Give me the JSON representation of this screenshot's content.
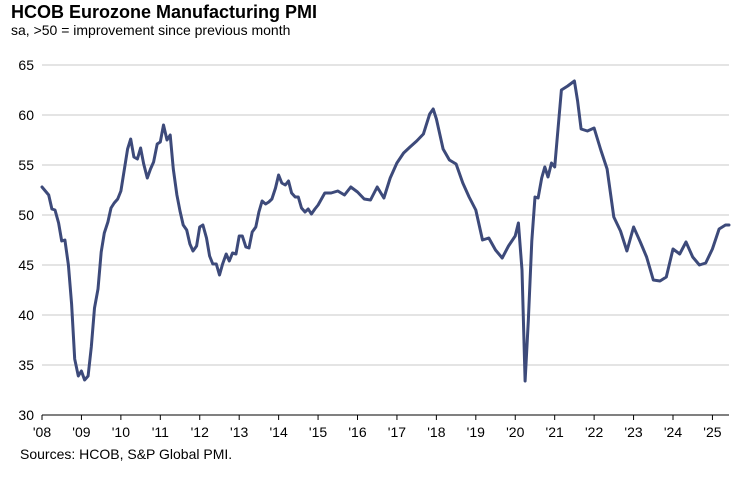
{
  "header": {
    "title": "HCOB Eurozone Manufacturing PMI",
    "subtitle": "sa, >50 = improvement  since previous month"
  },
  "footer": {
    "source": "Sources: HCOB, S&P Global PMI."
  },
  "colors": {
    "line": "#3d4a7a",
    "grid": "#c8c8c8",
    "axis": "#000000"
  },
  "chart_data": {
    "type": "line",
    "title": "HCOB Eurozone Manufacturing PMI",
    "subtitle": "sa, >50 = improvement  since previous month",
    "xlabel": "",
    "ylabel": "",
    "ylim": [
      30,
      65
    ],
    "yticks": [
      30,
      35,
      40,
      45,
      50,
      55,
      60,
      65
    ],
    "xlim": [
      2008.0,
      2025.42
    ],
    "xticks": [
      {
        "value": 2008,
        "label": "'08"
      },
      {
        "value": 2009,
        "label": "'09"
      },
      {
        "value": 2010,
        "label": "'10"
      },
      {
        "value": 2011,
        "label": "'11"
      },
      {
        "value": 2012,
        "label": "'12"
      },
      {
        "value": 2013,
        "label": "'13"
      },
      {
        "value": 2014,
        "label": "'14"
      },
      {
        "value": 2015,
        "label": "'15"
      },
      {
        "value": 2016,
        "label": "'16"
      },
      {
        "value": 2017,
        "label": "'17"
      },
      {
        "value": 2018,
        "label": "'18"
      },
      {
        "value": 2019,
        "label": "'19"
      },
      {
        "value": 2020,
        "label": "'20"
      },
      {
        "value": 2021,
        "label": "'21"
      },
      {
        "value": 2022,
        "label": "'22"
      },
      {
        "value": 2023,
        "label": "'23"
      },
      {
        "value": 2024,
        "label": "'24"
      },
      {
        "value": 2025,
        "label": "'25"
      }
    ],
    "grid": true,
    "series": [
      {
        "name": "HCOB Eurozone Manufacturing PMI",
        "x": [
          2008.0,
          2008.17,
          2008.25,
          2008.33,
          2008.42,
          2008.5,
          2008.58,
          2008.67,
          2008.75,
          2008.83,
          2008.92,
          2009.0,
          2009.08,
          2009.17,
          2009.25,
          2009.33,
          2009.42,
          2009.5,
          2009.58,
          2009.67,
          2009.75,
          2009.83,
          2009.92,
          2010.0,
          2010.17,
          2010.25,
          2010.33,
          2010.42,
          2010.5,
          2010.58,
          2010.67,
          2010.75,
          2010.83,
          2010.92,
          2011.0,
          2011.08,
          2011.17,
          2011.25,
          2011.33,
          2011.42,
          2011.5,
          2011.58,
          2011.67,
          2011.75,
          2011.83,
          2011.92,
          2012.0,
          2012.08,
          2012.17,
          2012.25,
          2012.33,
          2012.42,
          2012.5,
          2012.58,
          2012.67,
          2012.75,
          2012.83,
          2012.92,
          2013.0,
          2013.08,
          2013.17,
          2013.25,
          2013.33,
          2013.42,
          2013.5,
          2013.58,
          2013.67,
          2013.75,
          2013.83,
          2013.92,
          2014.0,
          2014.08,
          2014.17,
          2014.25,
          2014.33,
          2014.42,
          2014.5,
          2014.58,
          2014.67,
          2014.75,
          2014.83,
          2014.92,
          2015.0,
          2015.17,
          2015.33,
          2015.5,
          2015.67,
          2015.83,
          2016.0,
          2016.17,
          2016.33,
          2016.5,
          2016.67,
          2016.83,
          2017.0,
          2017.17,
          2017.33,
          2017.5,
          2017.67,
          2017.83,
          2017.92,
          2018.0,
          2018.17,
          2018.33,
          2018.5,
          2018.67,
          2018.83,
          2019.0,
          2019.17,
          2019.33,
          2019.5,
          2019.67,
          2019.83,
          2020.0,
          2020.08,
          2020.17,
          2020.25,
          2020.33,
          2020.42,
          2020.5,
          2020.58,
          2020.67,
          2020.75,
          2020.83,
          2020.92,
          2021.0,
          2021.17,
          2021.33,
          2021.5,
          2021.58,
          2021.67,
          2021.83,
          2022.0,
          2022.17,
          2022.33,
          2022.5,
          2022.67,
          2022.83,
          2023.0,
          2023.17,
          2023.33,
          2023.5,
          2023.67,
          2023.83,
          2024.0,
          2024.17,
          2024.33,
          2024.5,
          2024.67,
          2024.83,
          2025.0,
          2025.17,
          2025.33,
          2025.42
        ],
        "values": [
          52.8,
          52.0,
          50.6,
          50.5,
          49.2,
          47.4,
          47.5,
          45.0,
          41.1,
          35.6,
          33.9,
          34.4,
          33.5,
          33.9,
          36.8,
          40.7,
          42.6,
          46.3,
          48.2,
          49.3,
          50.7,
          51.2,
          51.6,
          52.4,
          56.6,
          57.6,
          55.8,
          55.6,
          56.7,
          55.1,
          53.7,
          54.6,
          55.3,
          57.1,
          57.3,
          59.0,
          57.5,
          58.0,
          54.6,
          52.0,
          50.4,
          49.0,
          48.5,
          47.1,
          46.4,
          46.9,
          48.8,
          49.0,
          47.7,
          45.9,
          45.1,
          45.1,
          44.0,
          45.1,
          46.1,
          45.4,
          46.2,
          46.1,
          47.9,
          47.9,
          46.8,
          46.7,
          48.3,
          48.8,
          50.3,
          51.4,
          51.1,
          51.3,
          51.6,
          52.7,
          54.0,
          53.2,
          53.0,
          53.4,
          52.2,
          51.8,
          51.8,
          50.7,
          50.3,
          50.6,
          50.1,
          50.6,
          51.0,
          52.2,
          52.2,
          52.4,
          52.0,
          52.8,
          52.3,
          51.6,
          51.5,
          52.8,
          51.7,
          53.7,
          55.2,
          56.2,
          56.8,
          57.4,
          58.1,
          60.1,
          60.6,
          59.6,
          56.6,
          55.5,
          55.1,
          53.2,
          51.8,
          50.5,
          47.5,
          47.7,
          46.5,
          45.7,
          46.9,
          47.9,
          49.2,
          44.5,
          33.4,
          39.4,
          47.4,
          51.8,
          51.7,
          53.7,
          54.8,
          53.8,
          55.2,
          54.8,
          62.5,
          62.9,
          63.4,
          61.4,
          58.6,
          58.4,
          58.7,
          56.5,
          54.6,
          49.8,
          48.4,
          46.4,
          48.8,
          47.3,
          45.8,
          43.5,
          43.4,
          43.8,
          46.6,
          46.1,
          47.3,
          45.8,
          45.0,
          45.2,
          46.6,
          48.6,
          49.0,
          49.0
        ]
      }
    ]
  }
}
